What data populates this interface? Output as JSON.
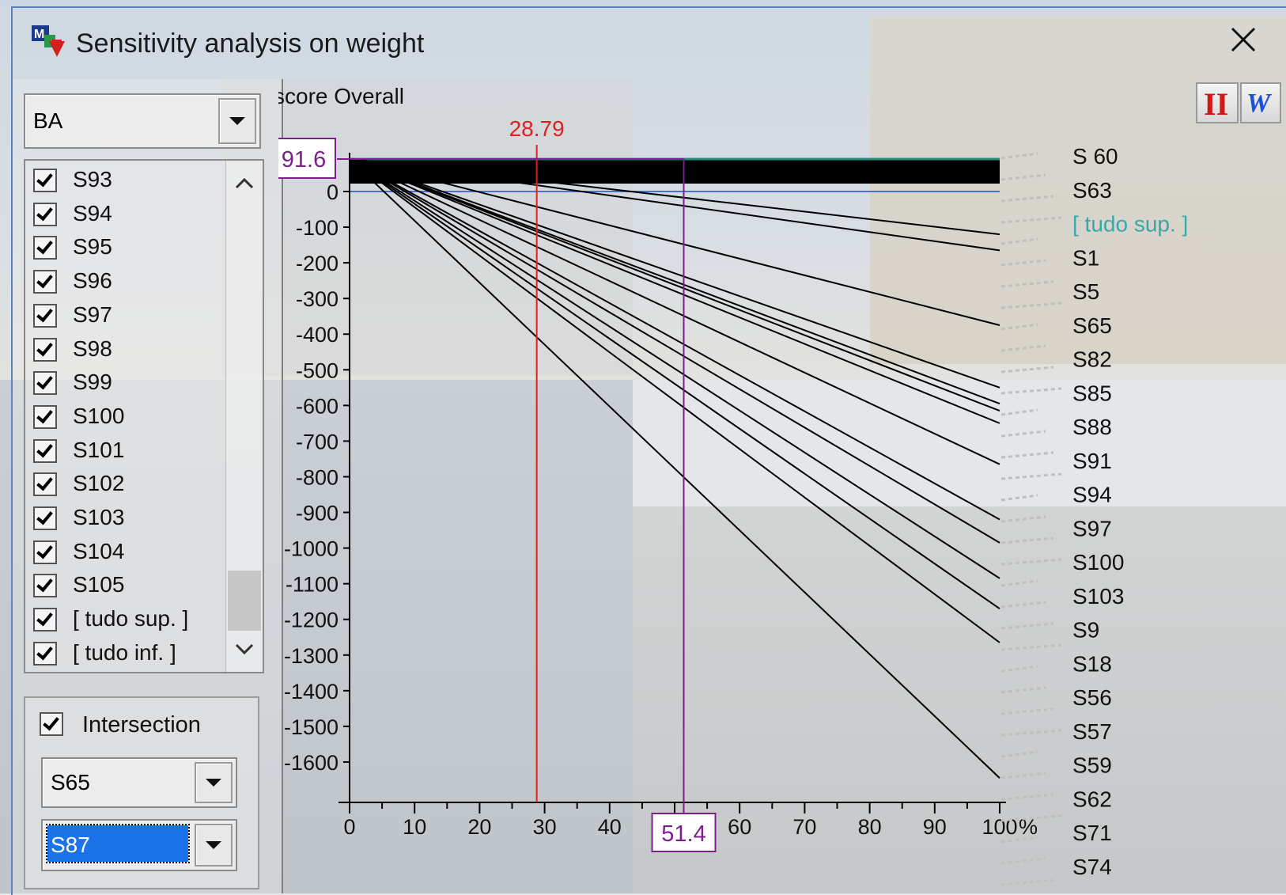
{
  "window": {
    "title": "Sensitivity analysis on weight",
    "close_symbol": "✕"
  },
  "left": {
    "criterion_combo": {
      "value": "BA"
    },
    "list_items": [
      {
        "label": "S93",
        "checked": true
      },
      {
        "label": "S94",
        "checked": true
      },
      {
        "label": "S95",
        "checked": true
      },
      {
        "label": "S96",
        "checked": true
      },
      {
        "label": "S97",
        "checked": true
      },
      {
        "label": "S98",
        "checked": true
      },
      {
        "label": "S99",
        "checked": true
      },
      {
        "label": "S100",
        "checked": true
      },
      {
        "label": "S101",
        "checked": true
      },
      {
        "label": "S102",
        "checked": true
      },
      {
        "label": "S103",
        "checked": true
      },
      {
        "label": "S104",
        "checked": true
      },
      {
        "label": "S105",
        "checked": true
      },
      {
        "label": "[ tudo sup. ]",
        "checked": true
      },
      {
        "label": "[ tudo inf. ]",
        "checked": true
      }
    ],
    "intersection": {
      "label": "Intersection",
      "checked": true
    },
    "alt1_combo": {
      "value": "S65"
    },
    "alt2_combo": {
      "value": "S87"
    }
  },
  "toolbar": {
    "btn1_text": "II",
    "btn2_text": "W"
  },
  "chart_data": {
    "type": "line",
    "title": "score Overall",
    "xlabel": "%",
    "x_ticks": [
      "0",
      "10",
      "20",
      "30",
      "40",
      "50",
      "60",
      "70",
      "80",
      "90",
      "100"
    ],
    "y_ticks": [
      "0",
      "-100",
      "-200",
      "-300",
      "-400",
      "-500",
      "-600",
      "-700",
      "-800",
      "-900",
      "-1000",
      "-1100",
      "-1200",
      "-1300",
      "-1400",
      "-1500",
      "-1600"
    ],
    "xlim": [
      0,
      100
    ],
    "ylim": [
      -1700,
      92
    ],
    "y_top_value": "91.6",
    "current_weight": "28.79",
    "intersection_x": "51.4",
    "series": [
      {
        "values": [
          [
            0,
            91.6
          ],
          [
            100,
            -120
          ]
        ]
      },
      {
        "values": [
          [
            0,
            91.6
          ],
          [
            100,
            -165
          ]
        ]
      },
      {
        "values": [
          [
            0,
            91.6
          ],
          [
            100,
            -375
          ]
        ]
      },
      {
        "values": [
          [
            0,
            91.6
          ],
          [
            100,
            -550
          ]
        ]
      },
      {
        "values": [
          [
            0,
            91.6
          ],
          [
            100,
            -595
          ]
        ]
      },
      {
        "values": [
          [
            0,
            91.6
          ],
          [
            100,
            -615
          ]
        ]
      },
      {
        "values": [
          [
            0,
            91.6
          ],
          [
            100,
            -650
          ]
        ]
      },
      {
        "values": [
          [
            0,
            91.6
          ],
          [
            100,
            -765
          ]
        ]
      },
      {
        "values": [
          [
            0,
            91.6
          ],
          [
            100,
            -920
          ]
        ]
      },
      {
        "values": [
          [
            0,
            91.6
          ],
          [
            100,
            -985
          ]
        ]
      },
      {
        "values": [
          [
            0,
            91.6
          ],
          [
            100,
            -1085
          ]
        ]
      },
      {
        "values": [
          [
            0,
            91.6
          ],
          [
            100,
            -1170
          ]
        ]
      },
      {
        "values": [
          [
            0,
            91.6
          ],
          [
            100,
            -1265
          ]
        ]
      },
      {
        "values": [
          [
            0,
            91.6
          ],
          [
            100,
            -1645
          ]
        ]
      }
    ],
    "legend_labels": [
      "S 60",
      "S63",
      "[ tudo sup. ]",
      "S1",
      "S5",
      "S65",
      "S82",
      "S85",
      "S88",
      "S91",
      "S94",
      "S97",
      "S100",
      "S103",
      "S9",
      "S18",
      "S56",
      "S57",
      "S59",
      "S62",
      "S71",
      "S74"
    ]
  },
  "colors": {
    "weight_line": "#e02020",
    "intersection_line": "#7b1f8a",
    "zero_line": "#4a6fd8",
    "top_band": "#2a8a7a",
    "tudo_sup": "#3aa8a8",
    "selected": "#1a73e8"
  }
}
